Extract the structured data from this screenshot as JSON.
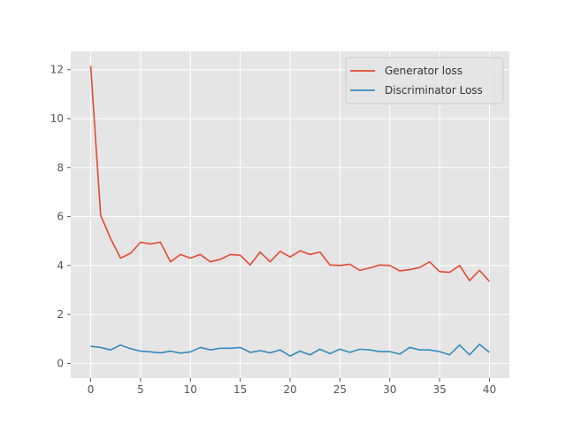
{
  "chart_data": {
    "type": "line",
    "title": "",
    "xlabel": "",
    "ylabel": "",
    "xlim": [
      -2,
      42
    ],
    "ylim": [
      -0.6,
      12.75
    ],
    "xticks": [
      0,
      5,
      10,
      15,
      20,
      25,
      30,
      35,
      40
    ],
    "yticks": [
      0,
      2,
      4,
      6,
      8,
      10,
      12
    ],
    "grid": true,
    "legend_position": "top-right",
    "x": [
      0,
      1,
      2,
      3,
      4,
      5,
      6,
      7,
      8,
      9,
      10,
      11,
      12,
      13,
      14,
      15,
      16,
      17,
      18,
      19,
      20,
      21,
      22,
      23,
      24,
      25,
      26,
      27,
      28,
      29,
      30,
      31,
      32,
      33,
      34,
      35,
      36,
      37,
      38,
      39,
      40
    ],
    "series": [
      {
        "name": "Generator loss",
        "color": "#e24a33",
        "values": [
          12.15,
          6.05,
          5.1,
          4.3,
          4.5,
          4.95,
          4.88,
          4.95,
          4.15,
          4.45,
          4.3,
          4.45,
          4.15,
          4.25,
          4.45,
          4.42,
          4.02,
          4.55,
          4.15,
          4.58,
          4.35,
          4.6,
          4.45,
          4.55,
          4.02,
          4.0,
          4.05,
          3.8,
          3.9,
          4.02,
          4.0,
          3.78,
          3.83,
          3.92,
          4.15,
          3.75,
          3.72,
          4.0,
          3.38,
          3.8,
          3.35
        ]
      },
      {
        "name": "Discriminator Loss",
        "color": "#348abd",
        "values": [
          0.7,
          0.65,
          0.55,
          0.75,
          0.6,
          0.5,
          0.47,
          0.43,
          0.5,
          0.42,
          0.47,
          0.65,
          0.55,
          0.62,
          0.62,
          0.65,
          0.45,
          0.52,
          0.43,
          0.55,
          0.3,
          0.5,
          0.35,
          0.58,
          0.4,
          0.58,
          0.45,
          0.58,
          0.55,
          0.48,
          0.48,
          0.38,
          0.65,
          0.55,
          0.55,
          0.48,
          0.35,
          0.75,
          0.35,
          0.78,
          0.45
        ]
      }
    ]
  },
  "style": {
    "plot_background": "#e5e5e5",
    "grid_color": "#ffffff",
    "tick_color": "#555555"
  }
}
